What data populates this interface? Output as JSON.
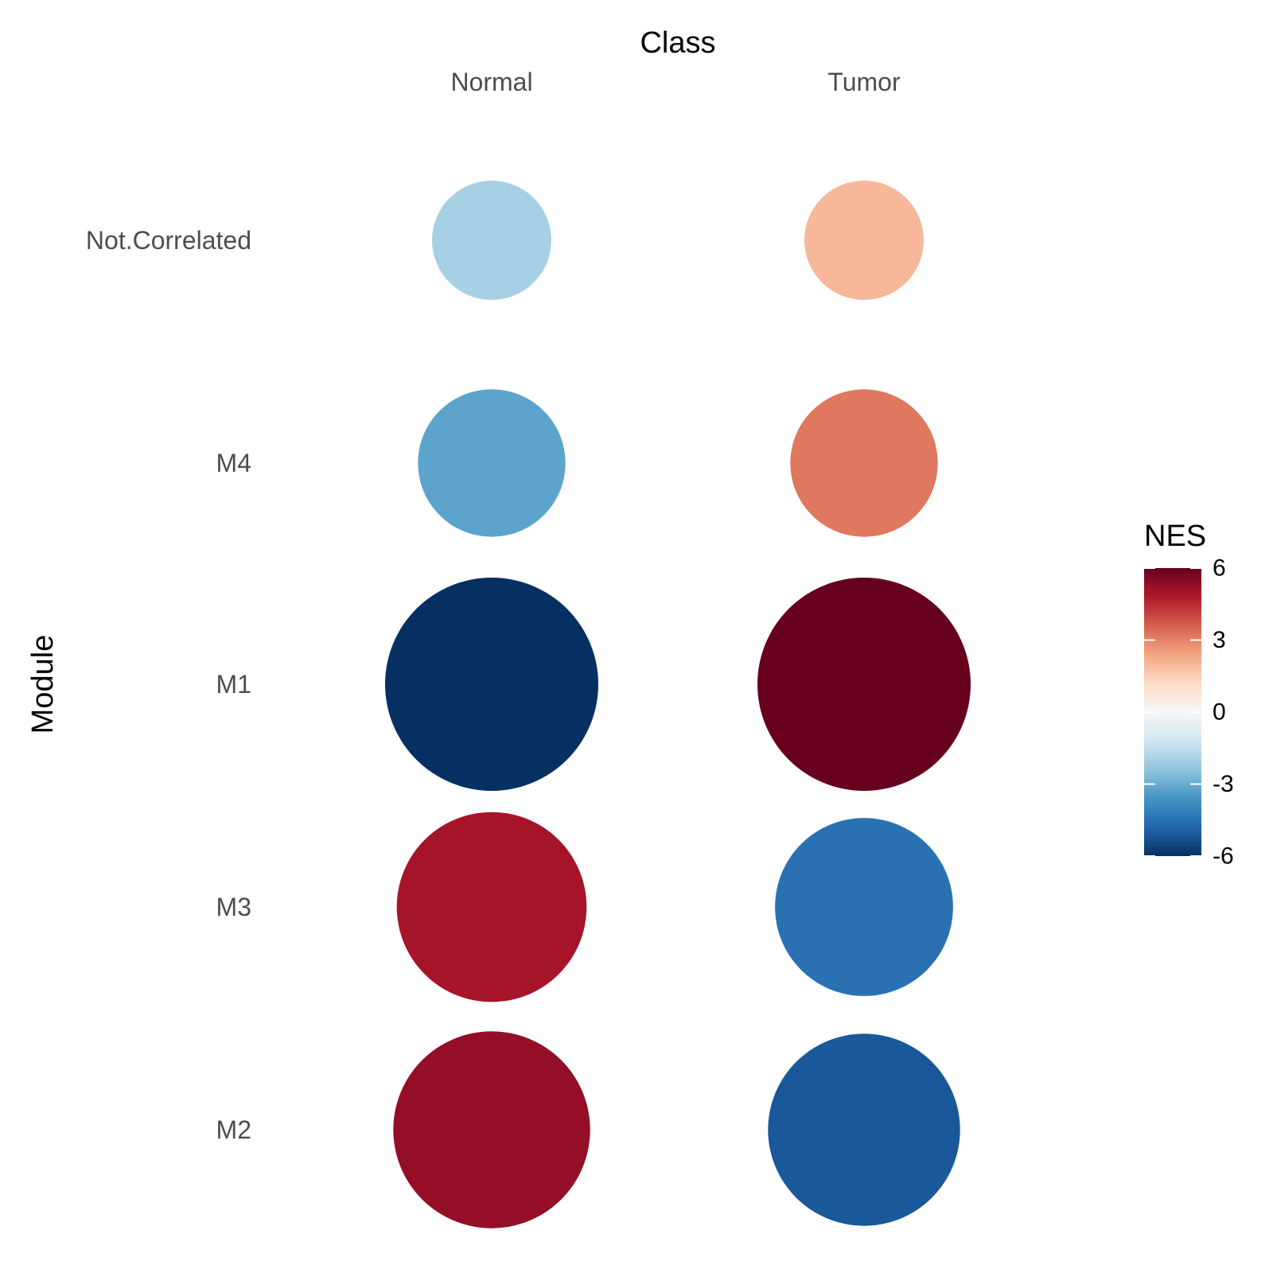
{
  "chart_data": {
    "type": "scatter",
    "title": "",
    "xlabel": "Class",
    "ylabel": "Module",
    "x_categories": [
      "Normal",
      "Tumor"
    ],
    "y_categories": [
      "Not.Correlated",
      "M4",
      "M1",
      "M3",
      "M2"
    ],
    "size_encodes": "absolute NES",
    "points": [
      {
        "module": "Not.Correlated",
        "class": "Normal",
        "NES": -2.0
      },
      {
        "module": "Not.Correlated",
        "class": "Tumor",
        "NES": 2.0
      },
      {
        "module": "M4",
        "class": "Normal",
        "NES": -3.2
      },
      {
        "module": "M4",
        "class": "Tumor",
        "NES": 3.2
      },
      {
        "module": "M1",
        "class": "Normal",
        "NES": -6.0
      },
      {
        "module": "M1",
        "class": "Tumor",
        "NES": 6.0
      },
      {
        "module": "M3",
        "class": "Normal",
        "NES": 5.0
      },
      {
        "module": "M3",
        "class": "Tumor",
        "NES": -4.5
      },
      {
        "module": "M2",
        "class": "Normal",
        "NES": 5.3
      },
      {
        "module": "M2",
        "class": "Tumor",
        "NES": -5.1
      }
    ],
    "legend": {
      "title": "NES",
      "placement": "right",
      "range": [
        -6,
        6
      ],
      "ticks": [
        6,
        3,
        0,
        -3,
        -6
      ],
      "colors": [
        "#053061",
        "#2166ac",
        "#4393c3",
        "#92c5de",
        "#d1e5f0",
        "#f7f7f7",
        "#fddbc7",
        "#f4a582",
        "#d6604d",
        "#b2182b",
        "#67001f"
      ]
    },
    "grid": false
  }
}
